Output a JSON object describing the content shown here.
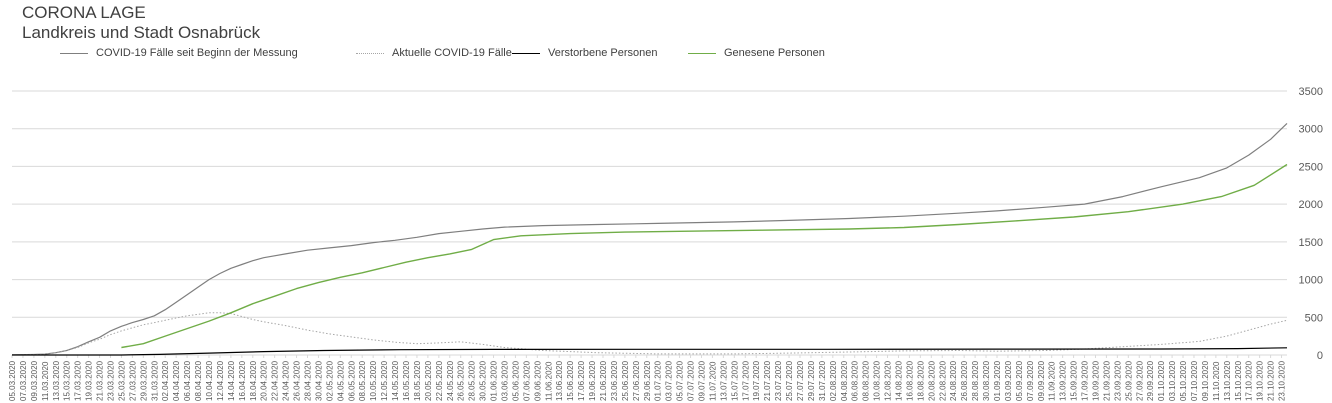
{
  "title": "CORONA LAGE",
  "subtitle": "Landkreis und Stadt Osnabrück",
  "colors": {
    "total": "#7f7f7f",
    "current": "#a6a6a6",
    "deaths": "#000000",
    "recovered": "#70ad47",
    "grid": "#d9d9d9",
    "text": "#595959"
  },
  "legend": [
    {
      "name": "COVID-19 Fälle seit Beginn der Messung",
      "style": "solid",
      "color": "#7f7f7f"
    },
    {
      "name": "Aktuelle COVID-19 Fälle",
      "style": "dotted",
      "color": "#a6a6a6"
    },
    {
      "name": "Verstorbene Personen",
      "style": "solid",
      "color": "#000000"
    },
    {
      "name": "Genesene Personen",
      "style": "solid",
      "color": "#70ad47"
    }
  ],
  "chart_data": {
    "type": "line",
    "title": "CORONA LAGE",
    "subtitle": "Landkreis und Stadt Osnabrück",
    "ylim": [
      0,
      3500
    ],
    "y_ticks": [
      0,
      500,
      1000,
      1500,
      2000,
      2500,
      3000,
      3500
    ],
    "y_axis_side": "right",
    "grid": true,
    "legend_position": "top",
    "x_start": "05.03.2020",
    "x_end": "24.10.2020",
    "x_tick_step_days": 2,
    "x_ticks": [
      "05.03.2020",
      "07.03.2020",
      "09.03.2020",
      "11.03.2020",
      "13.03.2020",
      "15.03.2020",
      "17.03.2020",
      "19.03.2020",
      "21.03.2020",
      "23.03.2020",
      "25.03.2020",
      "27.03.2020",
      "29.03.2020",
      "31.03.2020",
      "02.04.2020",
      "04.04.2020",
      "06.04.2020",
      "08.04.2020",
      "10.04.2020",
      "12.04.2020",
      "14.04.2020",
      "16.04.2020",
      "18.04.2020",
      "20.04.2020",
      "22.04.2020",
      "24.04.2020",
      "26.04.2020",
      "28.04.2020",
      "30.04.2020",
      "02.05.2020",
      "04.05.2020",
      "06.05.2020",
      "08.05.2020",
      "10.05.2020",
      "12.05.2020",
      "14.05.2020",
      "16.05.2020",
      "18.05.2020",
      "20.05.2020",
      "22.05.2020",
      "24.05.2020",
      "26.05.2020",
      "28.05.2020",
      "30.05.2020",
      "01.06.2020",
      "03.06.2020",
      "05.06.2020",
      "07.06.2020",
      "09.06.2020",
      "11.06.2020",
      "13.06.2020",
      "15.06.2020",
      "17.06.2020",
      "19.06.2020",
      "21.06.2020",
      "23.06.2020",
      "25.06.2020",
      "27.06.2020",
      "29.06.2020",
      "01.07.2020",
      "03.07.2020",
      "05.07.2020",
      "07.07.2020",
      "09.07.2020",
      "11.07.2020",
      "13.07.2020",
      "15.07.2020",
      "17.07.2020",
      "19.07.2020",
      "21.07.2020",
      "23.07.2020",
      "25.07.2020",
      "27.07.2020",
      "29.07.2020",
      "31.07.2020",
      "02.08.2020",
      "04.08.2020",
      "06.08.2020",
      "08.08.2020",
      "10.08.2020",
      "12.08.2020",
      "14.08.2020",
      "16.08.2020",
      "18.08.2020",
      "20.08.2020",
      "22.08.2020",
      "24.08.2020",
      "26.08.2020",
      "28.08.2020",
      "30.08.2020",
      "01.09.2020",
      "03.09.2020",
      "05.09.2020",
      "07.09.2020",
      "09.09.2020",
      "11.09.2020",
      "13.09.2020",
      "15.09.2020",
      "17.09.2020",
      "19.09.2020",
      "21.09.2020",
      "23.09.2020",
      "25.09.2020",
      "27.09.2020",
      "29.09.2020",
      "01.10.2020",
      "03.10.2020",
      "05.10.2020",
      "07.10.2020",
      "09.10.2020",
      "11.10.2020",
      "13.10.2020",
      "15.10.2020",
      "17.10.2020",
      "19.10.2020",
      "21.10.2020",
      "23.10.2020"
    ],
    "series": [
      {
        "name": "COVID-19 Fälle seit Beginn der Messung",
        "style": "solid",
        "points": [
          [
            "05.03.2020",
            1
          ],
          [
            "09.03.2020",
            6
          ],
          [
            "11.03.2020",
            12
          ],
          [
            "13.03.2020",
            30
          ],
          [
            "15.03.2020",
            60
          ],
          [
            "17.03.2020",
            110
          ],
          [
            "19.03.2020",
            175
          ],
          [
            "21.03.2020",
            235
          ],
          [
            "23.03.2020",
            320
          ],
          [
            "25.03.2020",
            380
          ],
          [
            "27.03.2020",
            430
          ],
          [
            "29.03.2020",
            470
          ],
          [
            "31.03.2020",
            520
          ],
          [
            "02.04.2020",
            600
          ],
          [
            "04.04.2020",
            700
          ],
          [
            "06.04.2020",
            800
          ],
          [
            "08.04.2020",
            900
          ],
          [
            "10.04.2020",
            1000
          ],
          [
            "12.04.2020",
            1080
          ],
          [
            "14.04.2020",
            1150
          ],
          [
            "16.04.2020",
            1200
          ],
          [
            "18.04.2020",
            1250
          ],
          [
            "20.04.2020",
            1290
          ],
          [
            "24.04.2020",
            1340
          ],
          [
            "28.04.2020",
            1390
          ],
          [
            "02.05.2020",
            1420
          ],
          [
            "06.05.2020",
            1450
          ],
          [
            "10.05.2020",
            1490
          ],
          [
            "14.05.2020",
            1520
          ],
          [
            "18.05.2020",
            1560
          ],
          [
            "22.05.2020",
            1610
          ],
          [
            "26.05.2020",
            1640
          ],
          [
            "30.05.2020",
            1670
          ],
          [
            "03.06.2020",
            1695
          ],
          [
            "10.06.2020",
            1715
          ],
          [
            "20.06.2020",
            1730
          ],
          [
            "01.07.2020",
            1745
          ],
          [
            "15.07.2020",
            1765
          ],
          [
            "25.07.2020",
            1785
          ],
          [
            "05.08.2020",
            1810
          ],
          [
            "15.08.2020",
            1840
          ],
          [
            "25.08.2020",
            1880
          ],
          [
            "01.09.2020",
            1910
          ],
          [
            "10.09.2020",
            1960
          ],
          [
            "17.09.2020",
            2000
          ],
          [
            "24.09.2020",
            2100
          ],
          [
            "01.10.2020",
            2230
          ],
          [
            "08.10.2020",
            2350
          ],
          [
            "13.10.2020",
            2480
          ],
          [
            "17.10.2020",
            2650
          ],
          [
            "21.10.2020",
            2860
          ],
          [
            "24.10.2020",
            3071
          ]
        ]
      },
      {
        "name": "Aktuelle COVID-19 Fälle",
        "style": "dotted",
        "points": [
          [
            "05.03.2020",
            1
          ],
          [
            "09.03.2020",
            6
          ],
          [
            "11.03.2020",
            12
          ],
          [
            "13.03.2020",
            30
          ],
          [
            "15.03.2020",
            58
          ],
          [
            "17.03.2020",
            100
          ],
          [
            "19.03.2020",
            160
          ],
          [
            "21.03.2020",
            210
          ],
          [
            "23.03.2020",
            270
          ],
          [
            "25.03.2020",
            320
          ],
          [
            "27.03.2020",
            360
          ],
          [
            "29.03.2020",
            400
          ],
          [
            "31.03.2020",
            430
          ],
          [
            "02.04.2020",
            460
          ],
          [
            "04.04.2020",
            490
          ],
          [
            "06.04.2020",
            520
          ],
          [
            "08.04.2020",
            540
          ],
          [
            "10.04.2020",
            560
          ],
          [
            "12.04.2020",
            560
          ],
          [
            "14.04.2020",
            550
          ],
          [
            "16.04.2020",
            510
          ],
          [
            "18.04.2020",
            470
          ],
          [
            "20.04.2020",
            440
          ],
          [
            "24.04.2020",
            390
          ],
          [
            "28.04.2020",
            330
          ],
          [
            "02.05.2020",
            280
          ],
          [
            "06.05.2020",
            240
          ],
          [
            "10.05.2020",
            200
          ],
          [
            "14.05.2020",
            170
          ],
          [
            "18.05.2020",
            150
          ],
          [
            "22.05.2020",
            160
          ],
          [
            "26.05.2020",
            175
          ],
          [
            "30.05.2020",
            140
          ],
          [
            "03.06.2020",
            100
          ],
          [
            "10.06.2020",
            60
          ],
          [
            "20.06.2020",
            30
          ],
          [
            "01.07.2020",
            15
          ],
          [
            "15.07.2020",
            15
          ],
          [
            "25.07.2020",
            25
          ],
          [
            "05.08.2020",
            40
          ],
          [
            "15.08.2020",
            55
          ],
          [
            "25.08.2020",
            60
          ],
          [
            "01.09.2020",
            50
          ],
          [
            "10.09.2020",
            60
          ],
          [
            "17.09.2020",
            80
          ],
          [
            "24.09.2020",
            110
          ],
          [
            "01.10.2020",
            140
          ],
          [
            "08.10.2020",
            180
          ],
          [
            "13.10.2020",
            250
          ],
          [
            "17.10.2020",
            330
          ],
          [
            "21.10.2020",
            410
          ],
          [
            "24.10.2020",
            460
          ]
        ]
      },
      {
        "name": "Verstorbene Personen",
        "style": "solid",
        "points": [
          [
            "05.03.2020",
            0
          ],
          [
            "25.03.2020",
            0
          ],
          [
            "01.04.2020",
            8
          ],
          [
            "10.04.2020",
            25
          ],
          [
            "20.04.2020",
            45
          ],
          [
            "01.05.2020",
            60
          ],
          [
            "15.05.2020",
            70
          ],
          [
            "01.06.2020",
            74
          ],
          [
            "01.07.2020",
            75
          ],
          [
            "01.08.2020",
            76
          ],
          [
            "01.09.2020",
            78
          ],
          [
            "01.10.2020",
            80
          ],
          [
            "15.10.2020",
            85
          ],
          [
            "24.10.2020",
            95
          ]
        ]
      },
      {
        "name": "Genesene Personen",
        "style": "solid",
        "points": [
          [
            "25.03.2020",
            100
          ],
          [
            "29.03.2020",
            150
          ],
          [
            "02.04.2020",
            250
          ],
          [
            "06.04.2020",
            350
          ],
          [
            "10.04.2020",
            450
          ],
          [
            "14.04.2020",
            560
          ],
          [
            "18.04.2020",
            680
          ],
          [
            "22.04.2020",
            780
          ],
          [
            "26.04.2020",
            880
          ],
          [
            "30.04.2020",
            960
          ],
          [
            "04.05.2020",
            1030
          ],
          [
            "08.05.2020",
            1090
          ],
          [
            "12.05.2020",
            1160
          ],
          [
            "16.05.2020",
            1230
          ],
          [
            "20.05.2020",
            1290
          ],
          [
            "24.05.2020",
            1340
          ],
          [
            "28.05.2020",
            1400
          ],
          [
            "01.06.2020",
            1530
          ],
          [
            "06.06.2020",
            1580
          ],
          [
            "15.06.2020",
            1610
          ],
          [
            "25.06.2020",
            1630
          ],
          [
            "05.07.2020",
            1640
          ],
          [
            "20.07.2020",
            1655
          ],
          [
            "05.08.2020",
            1670
          ],
          [
            "15.08.2020",
            1690
          ],
          [
            "25.08.2020",
            1730
          ],
          [
            "05.09.2020",
            1780
          ],
          [
            "15.09.2020",
            1830
          ],
          [
            "25.09.2020",
            1900
          ],
          [
            "05.10.2020",
            2000
          ],
          [
            "12.10.2020",
            2100
          ],
          [
            "18.10.2020",
            2250
          ],
          [
            "24.10.2020",
            2525
          ]
        ]
      }
    ]
  }
}
